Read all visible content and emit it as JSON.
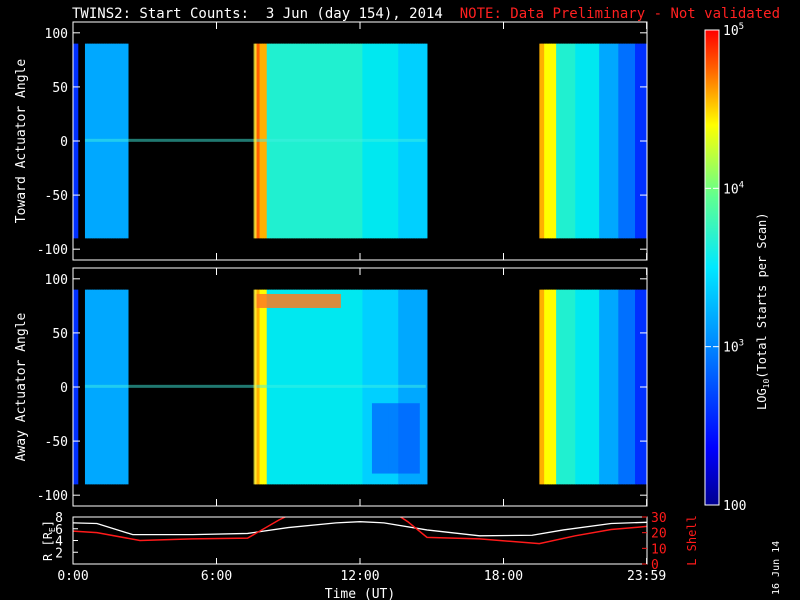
{
  "header": {
    "title": "TWINS2: Start Counts:  3 Jun (day 154), 2014",
    "note": "NOTE: Data Preliminary - Not validated"
  },
  "datestamp": "16 Jun 14",
  "colors": {
    "note": "#ff2020",
    "r_line": "#ffffff",
    "l_shell_line": "#ff1a1a",
    "axes": "#ffffff"
  },
  "chart_data": [
    {
      "type": "heatmap",
      "ylabel": "Toward Actuator Angle",
      "ylim": [
        -110,
        110
      ],
      "yticks": [
        100,
        50,
        0,
        -50,
        -100
      ],
      "xlim": [
        0,
        24
      ],
      "data_gaps_hours": [
        [
          2.3,
          7.5
        ],
        [
          14.75,
          19.5
        ]
      ],
      "angle_range": [
        -90,
        90
      ]
    },
    {
      "type": "heatmap",
      "ylabel": "Away Actuator Angle",
      "ylim": [
        -110,
        110
      ],
      "yticks": [
        100,
        50,
        0,
        -50,
        -100
      ],
      "xlim": [
        0,
        24
      ],
      "data_gaps_hours": [
        [
          2.3,
          7.5
        ],
        [
          14.75,
          19.5
        ]
      ],
      "angle_range": [
        -90,
        90
      ]
    },
    {
      "type": "line",
      "ylabel_left": "R [R_E]",
      "ylabel_left_text": "R [R",
      "ylabel_left_sub": "E",
      "ylabel_left_close": "]",
      "ylabel_right": "L Shell",
      "yticks_left": [
        8,
        6,
        4,
        2
      ],
      "yticks_right": [
        30,
        20,
        10,
        0
      ],
      "ylim_left": [
        0,
        8
      ],
      "ylim_right": [
        0,
        30
      ],
      "xlabel": "Time (UT)",
      "xticks": [
        "0:00",
        "6:00",
        "12:00",
        "18:00",
        "23:59"
      ],
      "xtick_hours": [
        0,
        6,
        12,
        18,
        23.983
      ],
      "series": [
        {
          "name": "R",
          "x": [
            0,
            1,
            2.5,
            5,
            7.3,
            9,
            11,
            12,
            13,
            14.8,
            17,
            19.2,
            20.5,
            22.5,
            24
          ],
          "y": [
            7.0,
            6.9,
            5.0,
            5.0,
            5.2,
            6.2,
            7.0,
            7.2,
            7.0,
            5.8,
            4.8,
            4.9,
            5.8,
            6.9,
            7.1
          ]
        },
        {
          "name": "L Shell",
          "x": [
            0,
            1,
            2.8,
            5,
            7.3,
            8.6,
            9.0,
            13.6,
            14.0,
            14.8,
            17,
            19.5,
            21,
            22.5,
            24
          ],
          "y": [
            21,
            20,
            15,
            16,
            16.5,
            28,
            31,
            31,
            27,
            17,
            16,
            13,
            18,
            22,
            24
          ]
        }
      ]
    }
  ],
  "colorbar": {
    "label": "LOG(Total Starts per Scan)",
    "label_base": "LOG",
    "label_sub": "10",
    "label_rest": "(Total Starts per Scan)",
    "ticks": [
      {
        "value": 100,
        "text": "100"
      },
      {
        "value": 1000,
        "text": "10",
        "exp": "3"
      },
      {
        "value": 10000,
        "text": "10",
        "exp": "4"
      },
      {
        "value": 100000,
        "text": "10",
        "exp": "5"
      }
    ],
    "range": [
      100,
      100000
    ],
    "scale": "log"
  }
}
